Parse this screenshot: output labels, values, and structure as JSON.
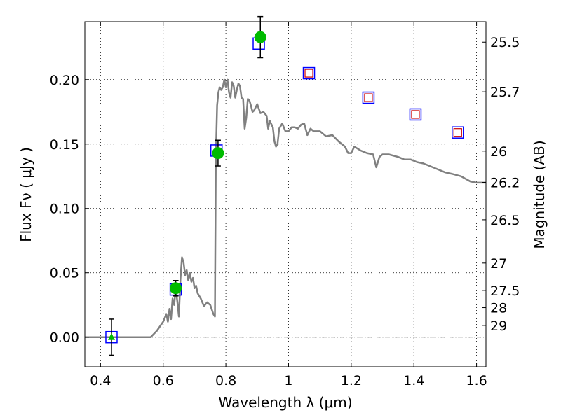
{
  "chart_data": {
    "type": "scatter",
    "xlabel": "Wavelength  λ (μm)",
    "ylabel": "Flux  Fν  ( μJy )",
    "y2label": "Magnitude (AB)",
    "xlim": [
      0.35,
      1.63
    ],
    "ylim": [
      -0.023,
      0.245
    ],
    "grid": true,
    "x_ticks": [
      {
        "value": 0.4,
        "label": "0.4"
      },
      {
        "value": 0.6,
        "label": "0.6"
      },
      {
        "value": 0.8,
        "label": "0.8"
      },
      {
        "value": 1.0,
        "label": "1"
      },
      {
        "value": 1.2,
        "label": "1.2"
      },
      {
        "value": 1.4,
        "label": "1.4"
      },
      {
        "value": 1.6,
        "label": "1.6"
      }
    ],
    "y_ticks": [
      {
        "value": 0.0,
        "label": "0.00"
      },
      {
        "value": 0.05,
        "label": "0.05"
      },
      {
        "value": 0.1,
        "label": "0.10"
      },
      {
        "value": 0.15,
        "label": "0.15"
      },
      {
        "value": 0.2,
        "label": "0.20"
      }
    ],
    "magnitude_ticks": [
      {
        "value": 25.5,
        "label": "25.5"
      },
      {
        "value": 25.7,
        "label": "25.7"
      },
      {
        "value": 26.0,
        "label": "26"
      },
      {
        "value": 26.2,
        "label": "26.2"
      },
      {
        "value": 26.5,
        "label": "26.5"
      },
      {
        "value": 27.0,
        "label": "27"
      },
      {
        "value": 27.5,
        "label": "27.5"
      },
      {
        "value": 28.0,
        "label": "28"
      },
      {
        "value": 29.0,
        "label": "29"
      }
    ],
    "series": [
      {
        "kind": "template_spectrum",
        "color": "#808080",
        "points": [
          [
            0.35,
            0.0
          ],
          [
            0.56,
            0.0
          ],
          [
            0.58,
            0.005
          ],
          [
            0.6,
            0.012
          ],
          [
            0.61,
            0.018
          ],
          [
            0.615,
            0.012
          ],
          [
            0.62,
            0.022
          ],
          [
            0.625,
            0.014
          ],
          [
            0.63,
            0.03
          ],
          [
            0.635,
            0.025
          ],
          [
            0.64,
            0.038
          ],
          [
            0.645,
            0.028
          ],
          [
            0.65,
            0.016
          ],
          [
            0.655,
            0.045
          ],
          [
            0.66,
            0.062
          ],
          [
            0.665,
            0.058
          ],
          [
            0.67,
            0.048
          ],
          [
            0.675,
            0.052
          ],
          [
            0.68,
            0.044
          ],
          [
            0.685,
            0.05
          ],
          [
            0.69,
            0.043
          ],
          [
            0.695,
            0.046
          ],
          [
            0.7,
            0.038
          ],
          [
            0.705,
            0.04
          ],
          [
            0.71,
            0.034
          ],
          [
            0.72,
            0.03
          ],
          [
            0.73,
            0.024
          ],
          [
            0.74,
            0.027
          ],
          [
            0.75,
            0.025
          ],
          [
            0.76,
            0.018
          ],
          [
            0.765,
            0.016
          ],
          [
            0.768,
            0.14
          ],
          [
            0.772,
            0.18
          ],
          [
            0.776,
            0.19
          ],
          [
            0.78,
            0.194
          ],
          [
            0.785,
            0.192
          ],
          [
            0.79,
            0.194
          ],
          [
            0.795,
            0.2
          ],
          [
            0.8,
            0.194
          ],
          [
            0.805,
            0.2
          ],
          [
            0.81,
            0.19
          ],
          [
            0.815,
            0.186
          ],
          [
            0.82,
            0.198
          ],
          [
            0.825,
            0.195
          ],
          [
            0.83,
            0.186
          ],
          [
            0.835,
            0.192
          ],
          [
            0.84,
            0.197
          ],
          [
            0.845,
            0.195
          ],
          [
            0.85,
            0.186
          ],
          [
            0.855,
            0.185
          ],
          [
            0.86,
            0.162
          ],
          [
            0.865,
            0.17
          ],
          [
            0.87,
            0.185
          ],
          [
            0.875,
            0.184
          ],
          [
            0.88,
            0.18
          ],
          [
            0.885,
            0.175
          ],
          [
            0.89,
            0.176
          ],
          [
            0.9,
            0.181
          ],
          [
            0.91,
            0.174
          ],
          [
            0.92,
            0.175
          ],
          [
            0.93,
            0.172
          ],
          [
            0.935,
            0.162
          ],
          [
            0.94,
            0.168
          ],
          [
            0.95,
            0.163
          ],
          [
            0.955,
            0.152
          ],
          [
            0.96,
            0.148
          ],
          [
            0.965,
            0.15
          ],
          [
            0.97,
            0.162
          ],
          [
            0.98,
            0.166
          ],
          [
            0.99,
            0.16
          ],
          [
            1.0,
            0.16
          ],
          [
            1.01,
            0.163
          ],
          [
            1.02,
            0.163
          ],
          [
            1.03,
            0.162
          ],
          [
            1.04,
            0.165
          ],
          [
            1.05,
            0.166
          ],
          [
            1.06,
            0.157
          ],
          [
            1.07,
            0.162
          ],
          [
            1.08,
            0.16
          ],
          [
            1.1,
            0.16
          ],
          [
            1.12,
            0.156
          ],
          [
            1.14,
            0.157
          ],
          [
            1.16,
            0.152
          ],
          [
            1.18,
            0.148
          ],
          [
            1.19,
            0.143
          ],
          [
            1.2,
            0.143
          ],
          [
            1.21,
            0.148
          ],
          [
            1.23,
            0.145
          ],
          [
            1.25,
            0.143
          ],
          [
            1.27,
            0.142
          ],
          [
            1.28,
            0.132
          ],
          [
            1.29,
            0.14
          ],
          [
            1.3,
            0.142
          ],
          [
            1.32,
            0.142
          ],
          [
            1.35,
            0.14
          ],
          [
            1.37,
            0.138
          ],
          [
            1.39,
            0.138
          ],
          [
            1.41,
            0.136
          ],
          [
            1.43,
            0.135
          ],
          [
            1.45,
            0.133
          ],
          [
            1.48,
            0.13
          ],
          [
            1.5,
            0.128
          ],
          [
            1.52,
            0.127
          ],
          [
            1.55,
            0.125
          ],
          [
            1.58,
            0.121
          ],
          [
            1.6,
            0.12
          ],
          [
            1.63,
            0.12
          ]
        ]
      },
      {
        "kind": "model_boxes",
        "marker": "square",
        "edge_color": "#0000ff",
        "points": [
          [
            0.435,
            0.0
          ],
          [
            0.64,
            0.037
          ],
          [
            0.77,
            0.145
          ],
          [
            0.905,
            0.228
          ],
          [
            1.065,
            0.205
          ],
          [
            1.255,
            0.186
          ],
          [
            1.405,
            0.173
          ],
          [
            1.54,
            0.159
          ]
        ]
      },
      {
        "kind": "upper_limit_boxes",
        "marker": "square",
        "edge_color": "#cc0000",
        "points": [
          [
            1.065,
            0.205
          ],
          [
            1.255,
            0.186
          ],
          [
            1.405,
            0.173
          ],
          [
            1.54,
            0.159
          ]
        ]
      },
      {
        "kind": "observed_detections",
        "marker": "circle",
        "color": "#00bb00",
        "points": [
          [
            0.64,
            0.038,
            0.006
          ],
          [
            0.775,
            0.143,
            0.01
          ],
          [
            0.91,
            0.233,
            0.016
          ]
        ]
      },
      {
        "kind": "observed_nondetection",
        "marker": "triangle",
        "color": "#00bb00",
        "points": [
          [
            0.435,
            0.0,
            0.014
          ]
        ]
      }
    ]
  }
}
